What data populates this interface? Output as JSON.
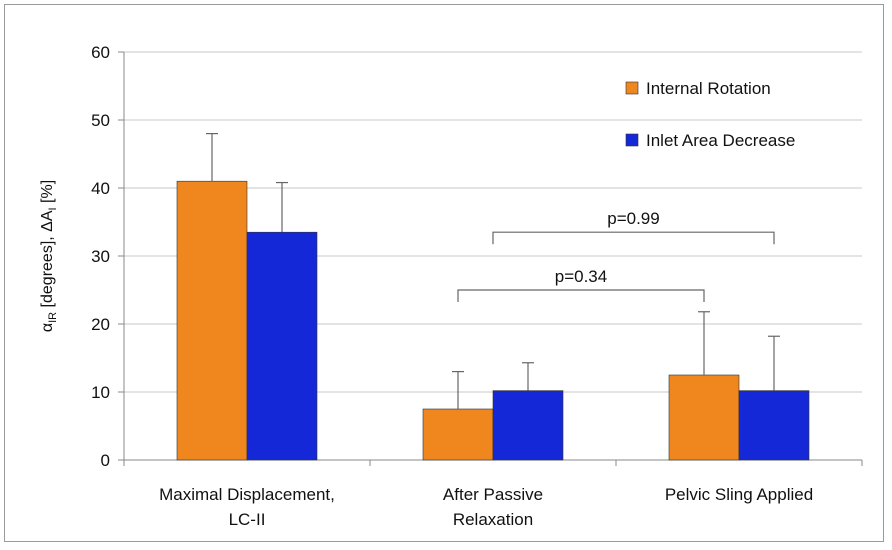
{
  "chart_data": {
    "type": "bar",
    "categories": [
      [
        "Maximal Displacement,",
        "LC-II"
      ],
      [
        "After Passive",
        "Relaxation"
      ],
      [
        "Pelvic Sling Applied"
      ]
    ],
    "series": [
      {
        "name": "Internal Rotation",
        "color": "#F0861E",
        "values": [
          41,
          7.5,
          12.5
        ],
        "errors": [
          7,
          5.5,
          9.3
        ]
      },
      {
        "name": "Inlet Area Decrease",
        "color": "#1428D8",
        "values": [
          33.5,
          10.2,
          10.2
        ],
        "errors": [
          7.3,
          4.1,
          8.0
        ]
      }
    ],
    "ylabel": {
      "main": "α",
      "sub1": "IR",
      "mid": " [degrees],  ΔA",
      "sub2": "I",
      "end": " [%]"
    },
    "ylim": [
      0,
      60
    ],
    "yticks": [
      0,
      10,
      20,
      30,
      40,
      50,
      60
    ],
    "grid": true,
    "legend_position": "top-right",
    "annotations": [
      {
        "text": "p=0.99",
        "from_category": 1,
        "to_category": 2,
        "level": 33.5
      },
      {
        "text": "p=0.34",
        "from_category": 1,
        "to_category": 2,
        "level": 25
      }
    ]
  }
}
